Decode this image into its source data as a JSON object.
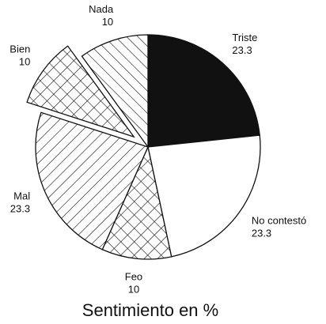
{
  "chart_data": {
    "type": "pie",
    "title": "Sentimiento en %",
    "categories": [
      "Triste",
      "No contestó",
      "Feo",
      "Mal",
      "Bien",
      "Nada"
    ],
    "values": [
      23.3,
      23.3,
      10,
      23.3,
      10,
      10
    ],
    "patterns": [
      "solid",
      "none",
      "crosshatch",
      "diagonal-down",
      "crosshatch",
      "diagonal-up"
    ],
    "exploded": [
      false,
      false,
      false,
      false,
      true,
      false
    ]
  }
}
